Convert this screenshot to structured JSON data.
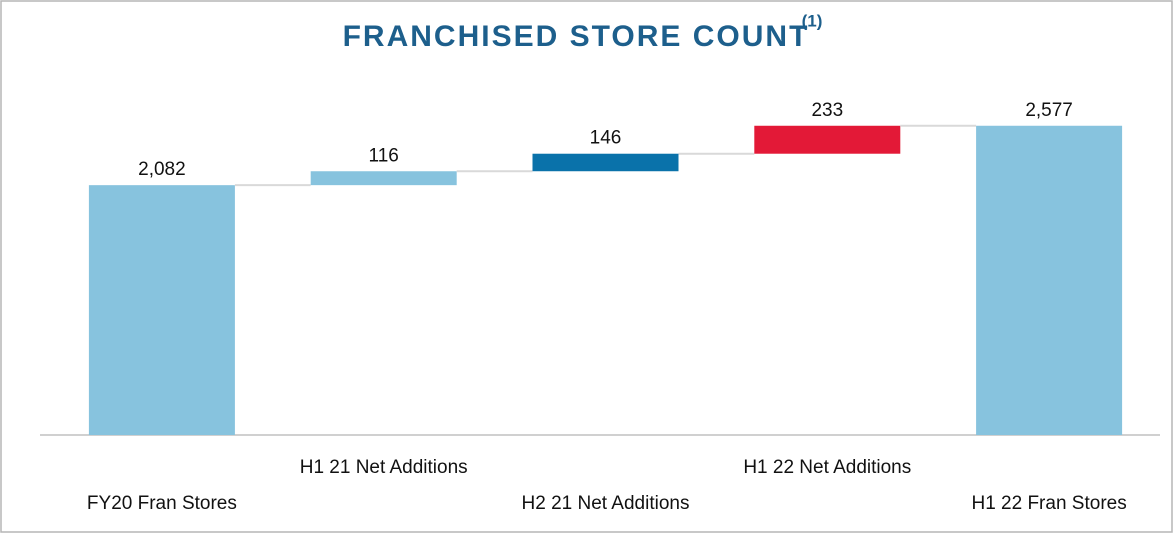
{
  "chart_data": {
    "type": "waterfall",
    "title": "FRANCHISED STORE COUNT",
    "title_superscript": "(1)",
    "categories": [
      "FY20 Fran Stores",
      "H1 21 Net Additions",
      "H2 21 Net Additions",
      "H1 22 Net Additions",
      "H1 22 Fran Stores"
    ],
    "values": [
      2082,
      116,
      146,
      233,
      2577
    ],
    "value_labels": [
      "2,082",
      "116",
      "146",
      "233",
      "2,577"
    ],
    "measures": [
      "absolute",
      "relative",
      "relative",
      "relative",
      "total"
    ],
    "colors": [
      "#87c3de",
      "#87c3de",
      "#0a72aa",
      "#e31937",
      "#87c3de"
    ],
    "ylim": [
      0,
      3000
    ]
  }
}
